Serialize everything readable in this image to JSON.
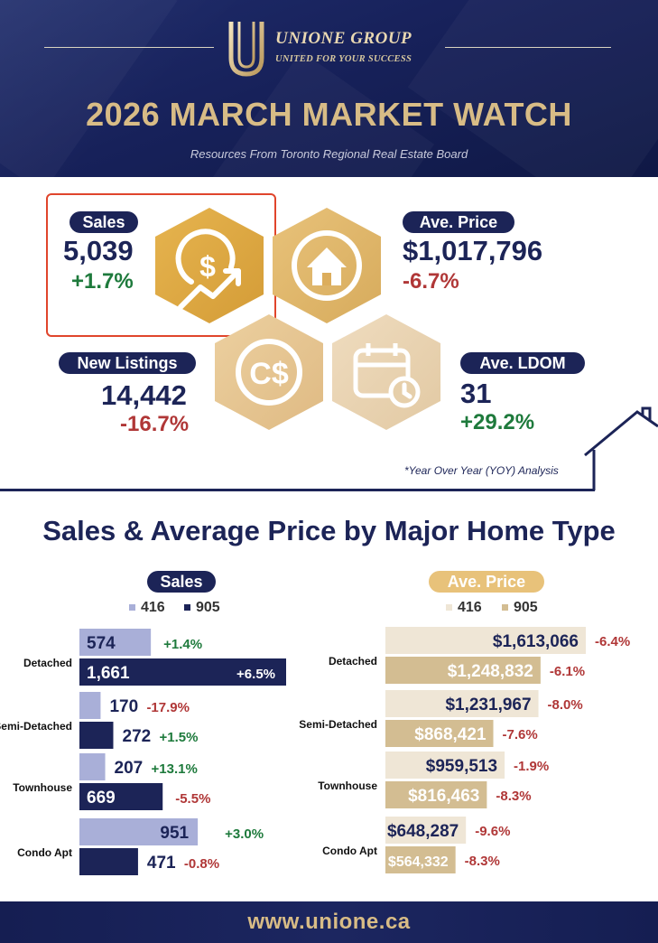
{
  "brand": {
    "name": "UNIONE GROUP",
    "tagline": "UNITED FOR YOUR SUCCESS"
  },
  "header": {
    "title": "2026 MARCH MARKET WATCH",
    "subtitle": "Resources From Toronto Regional Real Estate Board"
  },
  "stats": {
    "sales": {
      "label": "Sales",
      "value": "5,039",
      "change": "+1.7%"
    },
    "avg_price": {
      "label": "Ave. Price",
      "value": "$1,017,796",
      "change": "-6.7%"
    },
    "new_listings": {
      "label": "New Listings",
      "value": "14,442",
      "change": "-16.7%"
    },
    "avg_ldom": {
      "label": "Ave. LDOM",
      "value": "31",
      "change": "+29.2%"
    },
    "note": "*Year Over Year (YOY) Analysis"
  },
  "icons": [
    "dollar-growth-icon",
    "house-icon",
    "canadian-dollar-icon",
    "calendar-clock-icon"
  ],
  "colors": {
    "navy": "#1c2457",
    "gold": "#d8bc86",
    "positive": "#1e7a3c",
    "negative": "#b03737",
    "sales_416": "#a9afd8",
    "sales_905": "#1c2457",
    "price_416": "#efe6d6",
    "price_905": "#d3bd92"
  },
  "chart_data": [
    {
      "type": "bar",
      "title": "Sales",
      "section_title": "Sales & Average Price by Major Home Type",
      "orientation": "horizontal",
      "categories": [
        "Detached",
        "Semi-Detached",
        "Townhouse",
        "Condo Apt"
      ],
      "series": [
        {
          "name": "416",
          "values": [
            574,
            170,
            207,
            951
          ],
          "labels": [
            "574",
            "170",
            "207",
            "951"
          ],
          "changes": [
            "+1.4%",
            "-17.9%",
            "+13.1%",
            "+3.0%"
          ]
        },
        {
          "name": "905",
          "values": [
            1661,
            272,
            669,
            471
          ],
          "labels": [
            "1,661",
            "272",
            "669",
            "471"
          ],
          "changes": [
            "+6.5%",
            "+1.5%",
            "-5.5%",
            "-0.8%"
          ]
        }
      ]
    },
    {
      "type": "bar",
      "title": "Ave. Price",
      "orientation": "horizontal",
      "categories": [
        "Detached",
        "Semi-Detached",
        "Townhouse",
        "Condo Apt"
      ],
      "series": [
        {
          "name": "416",
          "values": [
            1613066,
            1231967,
            959513,
            648287
          ],
          "labels": [
            "$1,613,066",
            "$1,231,967",
            "$959,513",
            "$648,287"
          ],
          "changes": [
            "-6.4%",
            "-8.0%",
            "-1.9%",
            "-9.6%"
          ]
        },
        {
          "name": "905",
          "values": [
            1248832,
            868421,
            816463,
            564332
          ],
          "labels": [
            "$1,248,832",
            "$868,421",
            "$816,463",
            "$564,332"
          ],
          "changes": [
            "-6.1%",
            "-7.6%",
            "-8.3%",
            "-8.3%"
          ]
        }
      ]
    }
  ],
  "footer": {
    "url": "www.unione.ca"
  }
}
